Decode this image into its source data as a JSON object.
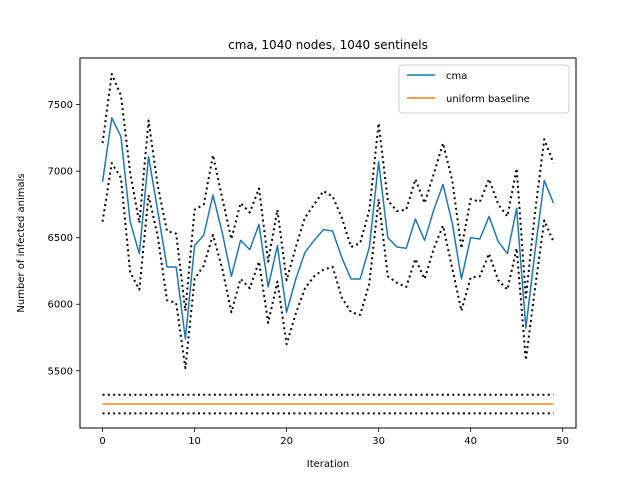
{
  "chart_data": {
    "type": "line",
    "title": "cma, 1040 nodes, 1040 sentinels",
    "xlabel": "Iteration",
    "ylabel": "Number of infected animals",
    "xlim": [
      -2.45,
      51.45
    ],
    "ylim": [
      5070,
      7850
    ],
    "xticks": [
      0,
      10,
      20,
      30,
      40,
      50
    ],
    "yticks": [
      5500,
      6000,
      6500,
      7000,
      7500
    ],
    "grid": false,
    "legend_position": "top-right",
    "x": [
      0,
      1,
      2,
      3,
      4,
      5,
      6,
      7,
      8,
      9,
      10,
      11,
      12,
      13,
      14,
      15,
      16,
      17,
      18,
      19,
      20,
      21,
      22,
      23,
      24,
      25,
      26,
      27,
      28,
      29,
      30,
      31,
      32,
      33,
      34,
      35,
      36,
      37,
      38,
      39,
      40,
      41,
      42,
      43,
      44,
      45,
      46,
      47,
      48,
      49
    ],
    "series": [
      {
        "name": "cma",
        "color": "#1f77b4",
        "style": "solid",
        "values": [
          6920,
          7400,
          7260,
          6620,
          6380,
          7110,
          6700,
          6280,
          6280,
          5740,
          6440,
          6520,
          6820,
          6540,
          6210,
          6480,
          6410,
          6600,
          6130,
          6440,
          5940,
          6190,
          6390,
          6480,
          6560,
          6550,
          6350,
          6190,
          6190,
          6430,
          7070,
          6500,
          6430,
          6420,
          6640,
          6480,
          6710,
          6900,
          6610,
          6190,
          6500,
          6490,
          6660,
          6470,
          6380,
          6720,
          5820,
          6400,
          6930,
          6760
        ]
      },
      {
        "name": "cma upper bound",
        "color": "#000000",
        "style": "dotted",
        "values": [
          7210,
          7730,
          7570,
          6990,
          6610,
          7380,
          6890,
          6550,
          6530,
          5950,
          6710,
          6750,
          7120,
          6800,
          6490,
          6760,
          6690,
          6870,
          6320,
          6710,
          6180,
          6430,
          6650,
          6750,
          6850,
          6810,
          6650,
          6430,
          6460,
          6710,
          7360,
          6780,
          6700,
          6710,
          6940,
          6760,
          6980,
          7210,
          6930,
          6420,
          6790,
          6770,
          6940,
          6750,
          6660,
          7020,
          6050,
          6690,
          7240,
          7060
        ]
      },
      {
        "name": "cma lower bound",
        "color": "#000000",
        "style": "dotted",
        "values": [
          6620,
          7060,
          6950,
          6240,
          6110,
          6820,
          6510,
          6030,
          6010,
          5520,
          6190,
          6290,
          6520,
          6270,
          5940,
          6190,
          6120,
          6320,
          5860,
          6170,
          5700,
          5930,
          6120,
          6210,
          6260,
          6280,
          6050,
          5940,
          5920,
          6160,
          6790,
          6210,
          6160,
          6130,
          6340,
          6190,
          6420,
          6590,
          6270,
          5950,
          6200,
          6210,
          6380,
          6180,
          6110,
          6420,
          5580,
          6120,
          6630,
          6470
        ]
      },
      {
        "name": "uniform baseline",
        "color": "#ff7f0e",
        "style": "solid",
        "values": [
          5250,
          5250,
          5250,
          5250,
          5250,
          5250,
          5250,
          5250,
          5250,
          5250,
          5250,
          5250,
          5250,
          5250,
          5250,
          5250,
          5250,
          5250,
          5250,
          5250,
          5250,
          5250,
          5250,
          5250,
          5250,
          5250,
          5250,
          5250,
          5250,
          5250,
          5250,
          5250,
          5250,
          5250,
          5250,
          5250,
          5250,
          5250,
          5250,
          5250,
          5250,
          5250,
          5250,
          5250,
          5250,
          5250,
          5250,
          5250,
          5250,
          5250
        ]
      },
      {
        "name": "uniform baseline upper bound",
        "color": "#000000",
        "style": "dotted",
        "values": [
          5320,
          5320,
          5320,
          5320,
          5320,
          5320,
          5320,
          5320,
          5320,
          5320,
          5320,
          5320,
          5320,
          5320,
          5320,
          5320,
          5320,
          5320,
          5320,
          5320,
          5320,
          5320,
          5320,
          5320,
          5320,
          5320,
          5320,
          5320,
          5320,
          5320,
          5320,
          5320,
          5320,
          5320,
          5320,
          5320,
          5320,
          5320,
          5320,
          5320,
          5320,
          5320,
          5320,
          5320,
          5320,
          5320,
          5320,
          5320,
          5320,
          5320
        ]
      },
      {
        "name": "uniform baseline lower bound",
        "color": "#000000",
        "style": "dotted",
        "values": [
          5180,
          5180,
          5180,
          5180,
          5180,
          5180,
          5180,
          5180,
          5180,
          5180,
          5180,
          5180,
          5180,
          5180,
          5180,
          5180,
          5180,
          5180,
          5180,
          5180,
          5180,
          5180,
          5180,
          5180,
          5180,
          5180,
          5180,
          5180,
          5180,
          5180,
          5180,
          5180,
          5180,
          5180,
          5180,
          5180,
          5180,
          5180,
          5180,
          5180,
          5180,
          5180,
          5180,
          5180,
          5180,
          5180,
          5180,
          5180,
          5180,
          5180
        ]
      }
    ],
    "legend": [
      {
        "label": "cma",
        "color": "#1f77b4"
      },
      {
        "label": "uniform baseline",
        "color": "#ff7f0e"
      }
    ]
  }
}
